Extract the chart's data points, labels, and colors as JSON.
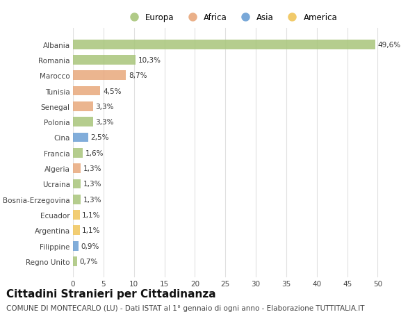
{
  "categories": [
    "Albania",
    "Romania",
    "Marocco",
    "Tunisia",
    "Senegal",
    "Polonia",
    "Cina",
    "Francia",
    "Algeria",
    "Ucraina",
    "Bosnia-Erzegovina",
    "Ecuador",
    "Argentina",
    "Filippine",
    "Regno Unito"
  ],
  "values": [
    49.6,
    10.3,
    8.7,
    4.5,
    3.3,
    3.3,
    2.5,
    1.6,
    1.3,
    1.3,
    1.3,
    1.1,
    1.1,
    0.9,
    0.7
  ],
  "labels": [
    "49,6%",
    "10,3%",
    "8,7%",
    "4,5%",
    "3,3%",
    "3,3%",
    "2,5%",
    "1,6%",
    "1,3%",
    "1,3%",
    "1,3%",
    "1,1%",
    "1,1%",
    "0,9%",
    "0,7%"
  ],
  "continents": [
    "Europa",
    "Europa",
    "Africa",
    "Africa",
    "Africa",
    "Europa",
    "Asia",
    "Europa",
    "Africa",
    "Europa",
    "Europa",
    "America",
    "America",
    "Asia",
    "Europa"
  ],
  "continent_colors": {
    "Europa": "#a8c57a",
    "Africa": "#e8a87c",
    "Asia": "#6b9fd4",
    "America": "#f0c55a"
  },
  "legend_order": [
    "Europa",
    "Africa",
    "Asia",
    "America"
  ],
  "bar_height": 0.62,
  "xlim": [
    0,
    52
  ],
  "xticks": [
    0,
    5,
    10,
    15,
    20,
    25,
    30,
    35,
    40,
    45,
    50
  ],
  "background_color": "#ffffff",
  "grid_color": "#e0e0e0",
  "title": "Cittadini Stranieri per Cittadinanza",
  "subtitle": "COMUNE DI MONTECARLO (LU) - Dati ISTAT al 1° gennaio di ogni anno - Elaborazione TUTTITALIA.IT",
  "title_fontsize": 11,
  "subtitle_fontsize": 7.5,
  "label_fontsize": 7.5,
  "tick_fontsize": 7.5,
  "legend_fontsize": 8.5
}
